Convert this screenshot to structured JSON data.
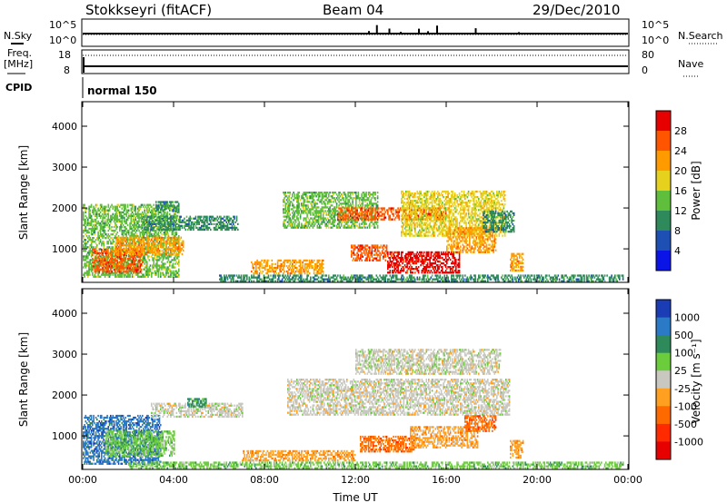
{
  "header": {
    "station": "Stokkseyri (fitACF)",
    "beam": "Beam 04",
    "date": "29/Dec/2010"
  },
  "status_panels": {
    "nsky_label": "N.Sky",
    "nsearch_label": "N.Search",
    "noise_ticks_left": [
      "10^5",
      "10^0"
    ],
    "noise_ticks_right": [
      "10^5",
      "10^0"
    ],
    "freq_label_line1": "Freq.",
    "freq_label_line2": "[MHz]",
    "freq_ticks": [
      "18",
      "8"
    ],
    "nave_label": "Nave",
    "nave_ticks": [
      "80",
      "0"
    ],
    "cpid_label": "CPID",
    "cpid_value": "normal 150",
    "nsky_spikes_hours": [
      0.05,
      12.6,
      12.95,
      13.5,
      14.0,
      14.8,
      15.2,
      15.6,
      17.3,
      19.2
    ]
  },
  "chart_data": [
    {
      "type": "heatmap",
      "panel": "power",
      "ylabel": "Slant Range [km]",
      "yticks": [
        1000,
        2000,
        3000,
        4000
      ],
      "ylim": [
        180,
        4600
      ],
      "xlim": [
        0,
        24
      ],
      "colorbar": {
        "label": "Power [dB]",
        "ticks": [
          "28",
          "24",
          "20",
          "16",
          "12",
          "8",
          "4"
        ],
        "colors": [
          "#e60000",
          "#ff5500",
          "#ff9a00",
          "#e6d21e",
          "#5fbe3c",
          "#2e8a5a",
          "#1e50b4",
          "#0a14e6"
        ]
      },
      "regions": [
        {
          "t0": 0.0,
          "t1": 4.2,
          "r0": 300,
          "r1": 2100,
          "level": 4
        },
        {
          "t0": 0.4,
          "t1": 2.6,
          "r0": 420,
          "r1": 1000,
          "level": 1
        },
        {
          "t0": 1.4,
          "t1": 4.4,
          "r0": 850,
          "r1": 1300,
          "level": 2
        },
        {
          "t0": 2.6,
          "t1": 6.8,
          "r0": 1450,
          "r1": 1800,
          "level": 5
        },
        {
          "t0": 3.2,
          "t1": 4.2,
          "r0": 1900,
          "r1": 2150,
          "level": 5
        },
        {
          "t0": 7.4,
          "t1": 10.6,
          "r0": 380,
          "r1": 700,
          "level": 2
        },
        {
          "t0": 8.8,
          "t1": 13.0,
          "r0": 1500,
          "r1": 2400,
          "level": 4
        },
        {
          "t0": 11.2,
          "t1": 16.0,
          "r0": 1700,
          "r1": 2000,
          "level": 1
        },
        {
          "t0": 11.8,
          "t1": 13.4,
          "r0": 700,
          "r1": 1100,
          "level": 1
        },
        {
          "t0": 13.4,
          "t1": 16.6,
          "r0": 400,
          "r1": 900,
          "level": 0
        },
        {
          "t0": 14.0,
          "t1": 18.6,
          "r0": 1300,
          "r1": 2400,
          "level": 3
        },
        {
          "t0": 16.0,
          "t1": 18.2,
          "r0": 900,
          "r1": 1500,
          "level": 2
        },
        {
          "t0": 17.6,
          "t1": 19.0,
          "r0": 1400,
          "r1": 1900,
          "level": 5
        },
        {
          "t0": 18.8,
          "t1": 19.4,
          "r0": 450,
          "r1": 900,
          "level": 2
        },
        {
          "t0": 6.0,
          "t1": 23.8,
          "r0": 190,
          "r1": 330,
          "level": 5
        }
      ]
    },
    {
      "type": "heatmap",
      "panel": "velocity",
      "ylabel": "Slant Range [km]",
      "yticks": [
        1000,
        2000,
        3000,
        4000
      ],
      "ylim": [
        180,
        4600
      ],
      "xlim": [
        0,
        24
      ],
      "xticks": [
        "00:00",
        "04:00",
        "08:00",
        "12:00",
        "16:00",
        "20:00",
        "00:00"
      ],
      "xlabel": "Time UT",
      "colorbar": {
        "label": "Velocity [m s⁻¹]",
        "ticks": [
          "1000",
          "500",
          "100",
          "25",
          "-25",
          "-100",
          "-500",
          "-1000"
        ],
        "colors": [
          "#1a3cb4",
          "#2a7ac8",
          "#2e8a5a",
          "#6ccd3c",
          "#c8c8c0",
          "#ffa020",
          "#ff6a00",
          "#ff2a00",
          "#e60000"
        ]
      },
      "regions": [
        {
          "t0": 0.0,
          "t1": 3.4,
          "r0": 300,
          "r1": 1500,
          "level": 1
        },
        {
          "t0": 1.0,
          "t1": 4.0,
          "r0": 500,
          "r1": 1100,
          "level": 3
        },
        {
          "t0": 3.0,
          "t1": 7.0,
          "r0": 1450,
          "r1": 1800,
          "level": 4
        },
        {
          "t0": 9.0,
          "t1": 18.8,
          "r0": 1500,
          "r1": 2400,
          "level": 4
        },
        {
          "t0": 12.0,
          "t1": 18.4,
          "r0": 2500,
          "r1": 3100,
          "level": 4
        },
        {
          "t0": 12.2,
          "t1": 14.6,
          "r0": 600,
          "r1": 1000,
          "level": 6
        },
        {
          "t0": 14.4,
          "t1": 17.4,
          "r0": 700,
          "r1": 1200,
          "level": 5
        },
        {
          "t0": 16.8,
          "t1": 18.2,
          "r0": 1100,
          "r1": 1500,
          "level": 6
        },
        {
          "t0": 18.8,
          "t1": 19.4,
          "r0": 450,
          "r1": 900,
          "level": 5
        },
        {
          "t0": 7.0,
          "t1": 12.0,
          "r0": 380,
          "r1": 650,
          "level": 5
        },
        {
          "t0": 2.0,
          "t1": 23.8,
          "r0": 190,
          "r1": 340,
          "level": 3
        },
        {
          "t0": 4.6,
          "t1": 5.4,
          "r0": 1700,
          "r1": 1900,
          "level": 2
        }
      ]
    }
  ]
}
